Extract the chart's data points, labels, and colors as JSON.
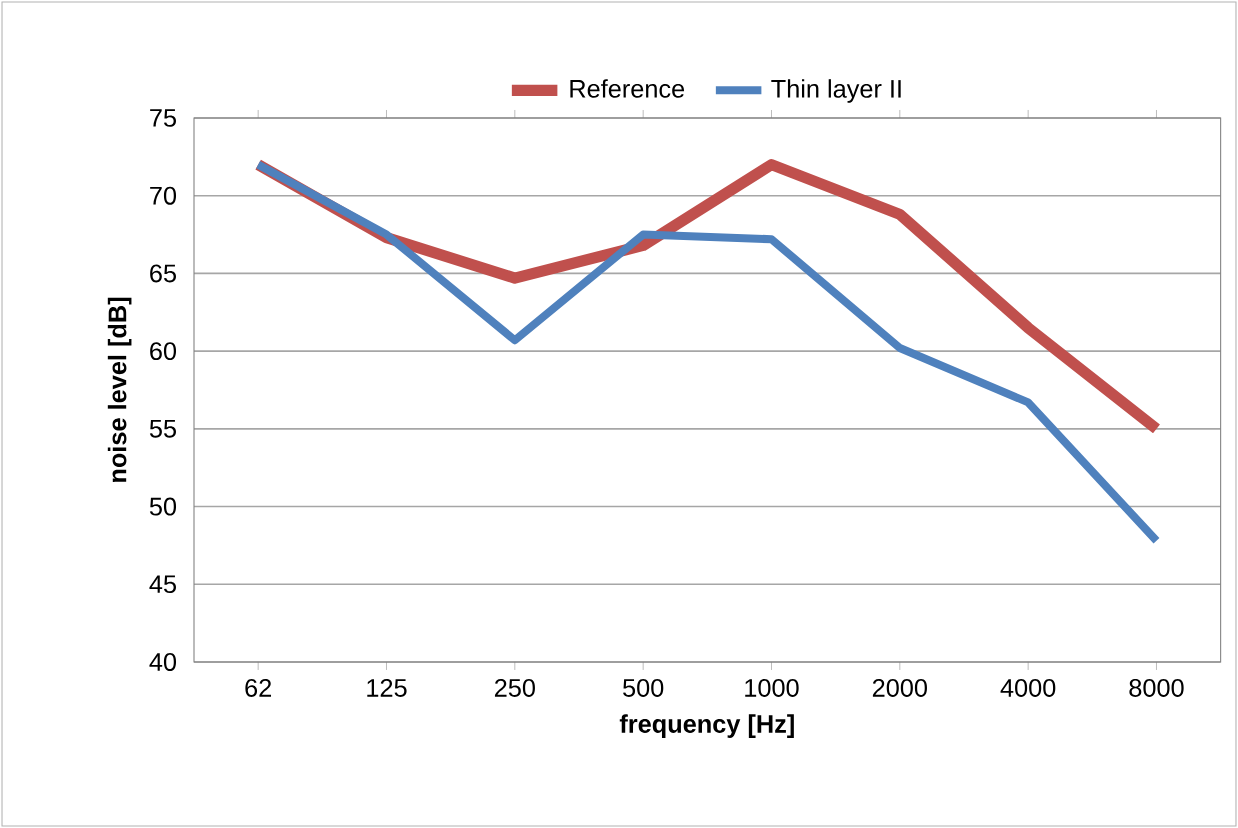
{
  "chart_data": {
    "type": "line",
    "xlabel": "frequency [Hz]",
    "ylabel": "noise level [dB]",
    "categories": [
      "62",
      "125",
      "250",
      "500",
      "1000",
      "2000",
      "4000",
      "8000"
    ],
    "series": [
      {
        "name": "Reference",
        "color": "#c0504d",
        "values": [
          72.0,
          67.3,
          64.7,
          66.8,
          72.0,
          68.8,
          61.5,
          55.0
        ]
      },
      {
        "name": "Thin layer II",
        "color": "#4f81bd",
        "values": [
          72.0,
          67.5,
          60.7,
          67.5,
          67.2,
          60.2,
          56.7,
          47.8
        ]
      }
    ],
    "ylim": [
      40,
      75
    ],
    "yticks": [
      40,
      45,
      50,
      55,
      60,
      65,
      70,
      75
    ],
    "grid": "y",
    "legend": "top",
    "marker": "none",
    "line_style": "solid"
  }
}
